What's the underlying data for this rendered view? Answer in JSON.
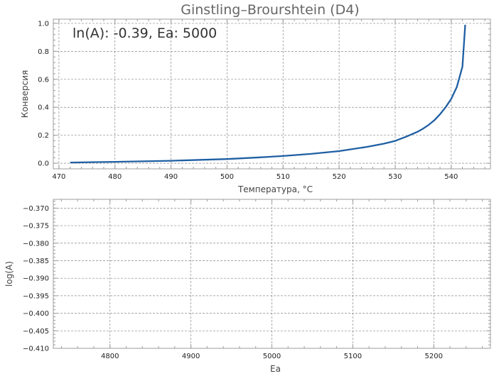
{
  "chart_data": [
    {
      "type": "line",
      "title": "Ginstling–Brourshtein (D4)",
      "annotation": "ln(A): -0.39, Ea: 5000",
      "xlabel": "Температура, °C",
      "ylabel": "Конверсия",
      "xlim": [
        469,
        547
      ],
      "ylim": [
        -0.04,
        1.03
      ],
      "xticks": [
        470,
        480,
        490,
        500,
        510,
        520,
        530,
        540
      ],
      "yticks": [
        0.0,
        0.2,
        0.4,
        0.6,
        0.8,
        1.0
      ],
      "ytick_labels": [
        "0.0",
        "0.2",
        "0.4",
        "0.6",
        "0.8",
        "1.0"
      ],
      "grid": true,
      "series": [
        {
          "color": "#1f5fa3",
          "x": [
            472,
            480,
            490,
            500,
            505,
            510,
            515,
            520,
            525,
            528,
            530,
            532,
            534,
            535,
            536,
            537,
            538,
            539,
            540,
            541,
            542,
            542.5
          ],
          "y": [
            0.005,
            0.01,
            0.018,
            0.03,
            0.04,
            0.052,
            0.067,
            0.087,
            0.117,
            0.14,
            0.16,
            0.19,
            0.225,
            0.248,
            0.275,
            0.308,
            0.35,
            0.4,
            0.46,
            0.545,
            0.69,
            0.99
          ]
        }
      ]
    },
    {
      "type": "scatter",
      "xlabel": "Ea",
      "ylabel": "log(A)",
      "xlim": [
        4730,
        5270
      ],
      "ylim": [
        -0.41,
        -0.3675
      ],
      "xticks": [
        4800,
        4900,
        5000,
        5100,
        5200
      ],
      "yticks": [
        -0.41,
        -0.405,
        -0.4,
        -0.395,
        -0.39,
        -0.385,
        -0.38,
        -0.375,
        -0.37
      ],
      "ytick_labels": [
        "−0.410",
        "−0.405",
        "−0.400",
        "−0.395",
        "−0.390",
        "−0.385",
        "−0.380",
        "−0.375",
        "−0.370"
      ],
      "grid": true,
      "series": []
    }
  ]
}
